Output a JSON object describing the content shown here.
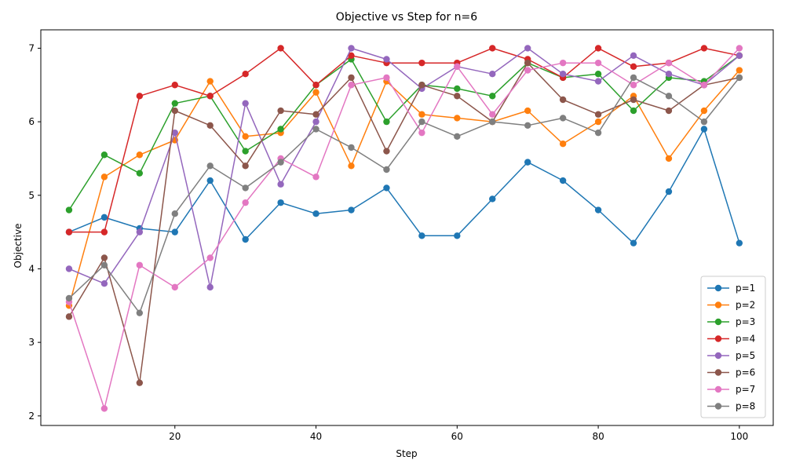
{
  "chart_data": {
    "type": "line",
    "title": "Objective vs Step for n=6",
    "xlabel": "Step",
    "ylabel": "Objective",
    "xlim": [
      1,
      104.8
    ],
    "ylim": [
      1.87,
      7.25
    ],
    "xticks": [
      20,
      40,
      60,
      80,
      100
    ],
    "yticks": [
      2,
      3,
      4,
      5,
      6,
      7
    ],
    "grid": false,
    "legend_position": "lower-right",
    "x": [
      5,
      10,
      15,
      20,
      25,
      30,
      35,
      40,
      45,
      50,
      55,
      60,
      65,
      70,
      75,
      80,
      85,
      90,
      95,
      100
    ],
    "series": [
      {
        "name": "p=1",
        "color": "#1f77b4",
        "values": [
          4.5,
          4.7,
          4.55,
          4.5,
          5.2,
          4.4,
          4.9,
          4.75,
          4.8,
          5.1,
          4.45,
          4.45,
          4.95,
          5.45,
          5.2,
          4.8,
          4.35,
          5.05,
          5.9,
          4.35
        ]
      },
      {
        "name": "p=2",
        "color": "#ff7f0e",
        "values": [
          3.5,
          5.25,
          5.55,
          5.75,
          6.55,
          5.8,
          5.85,
          6.4,
          5.4,
          6.55,
          6.1,
          6.05,
          6.0,
          6.15,
          5.7,
          6.0,
          6.35,
          5.5,
          6.15,
          6.7
        ]
      },
      {
        "name": "p=3",
        "color": "#2ca02c",
        "values": [
          4.8,
          5.55,
          5.3,
          6.25,
          6.35,
          5.6,
          5.9,
          6.5,
          6.85,
          6.0,
          6.5,
          6.45,
          6.35,
          6.8,
          6.6,
          6.65,
          6.15,
          6.6,
          6.55,
          6.9
        ]
      },
      {
        "name": "p=4",
        "color": "#d62728",
        "values": [
          4.5,
          4.5,
          6.35,
          6.5,
          6.35,
          6.65,
          7.0,
          6.5,
          6.9,
          6.8,
          6.8,
          6.8,
          7.0,
          6.85,
          6.6,
          7.0,
          6.75,
          6.8,
          7.0,
          6.9
        ]
      },
      {
        "name": "p=5",
        "color": "#9467bd",
        "values": [
          4.0,
          3.8,
          4.5,
          5.85,
          3.75,
          6.25,
          5.15,
          6.0,
          7.0,
          6.85,
          6.45,
          6.75,
          6.65,
          7.0,
          6.65,
          6.55,
          6.9,
          6.65,
          6.5,
          6.9
        ]
      },
      {
        "name": "p=6",
        "color": "#8c564b",
        "values": [
          3.35,
          4.15,
          2.45,
          6.15,
          5.95,
          5.4,
          6.15,
          6.1,
          6.6,
          5.6,
          6.5,
          6.35,
          6.0,
          6.8,
          6.3,
          6.1,
          6.3,
          6.15,
          6.5,
          6.6
        ]
      },
      {
        "name": "p=7",
        "color": "#e377c2",
        "values": [
          3.55,
          2.1,
          4.05,
          3.75,
          4.15,
          4.9,
          5.5,
          5.25,
          6.5,
          6.6,
          5.85,
          6.75,
          6.1,
          6.7,
          6.8,
          6.8,
          6.5,
          6.8,
          6.5,
          7.0
        ]
      },
      {
        "name": "p=8",
        "color": "#7f7f7f",
        "values": [
          3.6,
          4.05,
          3.4,
          4.75,
          5.4,
          5.1,
          5.45,
          5.9,
          5.65,
          5.35,
          6.0,
          5.8,
          6.0,
          5.95,
          6.05,
          5.85,
          6.6,
          6.35,
          6.0,
          6.6
        ]
      }
    ]
  }
}
